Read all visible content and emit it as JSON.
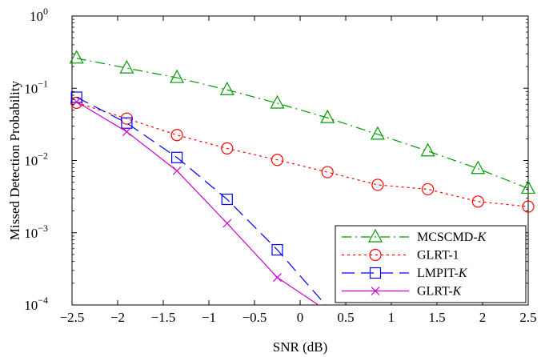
{
  "chart_data": {
    "type": "line",
    "xlabel": "SNR (dB)",
    "ylabel": "Missed Detection Probability",
    "xlim": [
      -2.5,
      2.5
    ],
    "ylim": [
      0.0001,
      1
    ],
    "yscale": "log",
    "grid": false,
    "legend_position": "bottom-right",
    "x_ticks": [
      "−2.5",
      "−2",
      "−1.5",
      "−1",
      "−0.5",
      "0",
      "0.5",
      "1",
      "1.5",
      "2",
      "2.5"
    ],
    "y_ticks": [
      {
        "base": "10",
        "exp": "0"
      },
      {
        "base": "10",
        "exp": "−1"
      },
      {
        "base": "10",
        "exp": "−2"
      },
      {
        "base": "10",
        "exp": "−3"
      },
      {
        "base": "10",
        "exp": "−4"
      }
    ],
    "series": [
      {
        "name": "MCSCMD-",
        "name_italic": "K",
        "color": "#009900",
        "dash": "dashdot",
        "marker": "triangle",
        "x": [
          -2.45,
          -1.9,
          -1.35,
          -0.8,
          -0.25,
          0.3,
          0.85,
          1.4,
          1.95,
          2.5
        ],
        "y": [
          0.26,
          0.19,
          0.14,
          0.095,
          0.062,
          0.039,
          0.023,
          0.0135,
          0.0077,
          0.0041
        ]
      },
      {
        "name": "GLRT-1",
        "name_italic": "",
        "color": "#ff0000",
        "dash": "dotted",
        "marker": "circle",
        "x": [
          -2.45,
          -1.9,
          -1.35,
          -0.8,
          -0.25,
          0.3,
          0.85,
          1.4,
          1.95,
          2.5
        ],
        "y": [
          0.063,
          0.038,
          0.0225,
          0.0147,
          0.0102,
          0.0069,
          0.0046,
          0.004,
          0.0027,
          0.0023
        ]
      },
      {
        "name": "LMPIT-",
        "name_italic": "K",
        "color": "#0000ff",
        "dash": "dashed",
        "marker": "square",
        "x": [
          -2.45,
          -1.9,
          -1.35,
          -0.8,
          -0.25,
          0.28
        ],
        "y": [
          0.075,
          0.033,
          0.011,
          0.0029,
          0.00058,
          0.0001
        ]
      },
      {
        "name": "GLRT-",
        "name_italic": "K",
        "color": "#cc00cc",
        "dash": "solid",
        "marker": "x",
        "x": [
          -2.45,
          -1.9,
          -1.35,
          -0.8,
          -0.25,
          0.2
        ],
        "y": [
          0.065,
          0.025,
          0.0072,
          0.00135,
          0.00024,
          0.0001
        ]
      }
    ]
  }
}
